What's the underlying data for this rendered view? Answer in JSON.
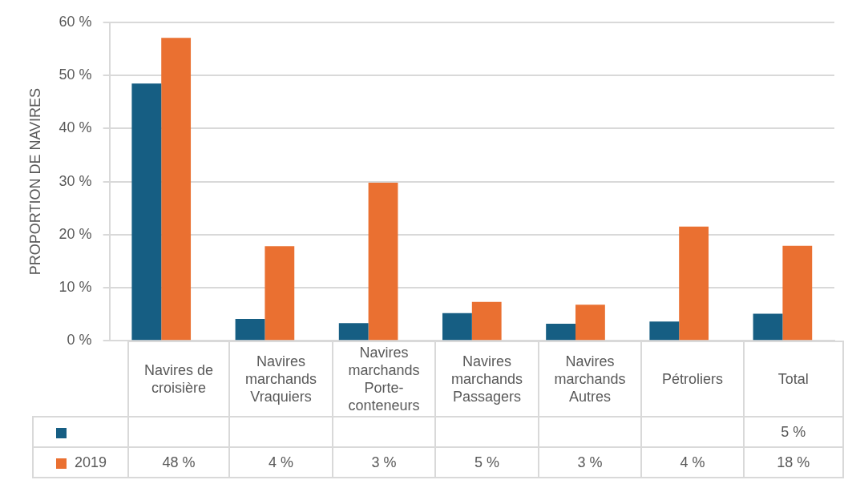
{
  "chart_data": {
    "type": "bar",
    "ylabel": "PROPORTION DE NAVIRES",
    "categories": [
      "Navires de croisière",
      "Navires marchands Vraquiers",
      "Navires marchands Porte-conteneurs",
      "Navires marchands Passagers",
      "Navires marchands Autres",
      "Pétroliers",
      "Total"
    ],
    "series": [
      {
        "color": "#165e83",
        "values": [
          48.5,
          4.1,
          3.3,
          5.2,
          3.2,
          3.6,
          5.1
        ]
      },
      {
        "name": "2019",
        "color": "#ea7031",
        "values": [
          57.1,
          17.8,
          29.8,
          7.3,
          6.8,
          21.5,
          17.9
        ]
      }
    ],
    "ylim": [
      0,
      60
    ],
    "yticks": [
      {
        "value": 0,
        "label": "0 %"
      },
      {
        "value": 10,
        "label": "10 %"
      },
      {
        "value": 20,
        "label": "20 %"
      },
      {
        "value": 30,
        "label": "30 %"
      },
      {
        "value": 40,
        "label": "40 %"
      },
      {
        "value": 50,
        "label": "50 %"
      },
      {
        "value": 60,
        "label": "60 %"
      }
    ],
    "grid": "y",
    "legend": "bottom",
    "annotations": [
      "5 %",
      "48 %",
      "4 %",
      "3 %",
      "5 %",
      "3 %",
      "4 %",
      "18 %"
    ]
  }
}
